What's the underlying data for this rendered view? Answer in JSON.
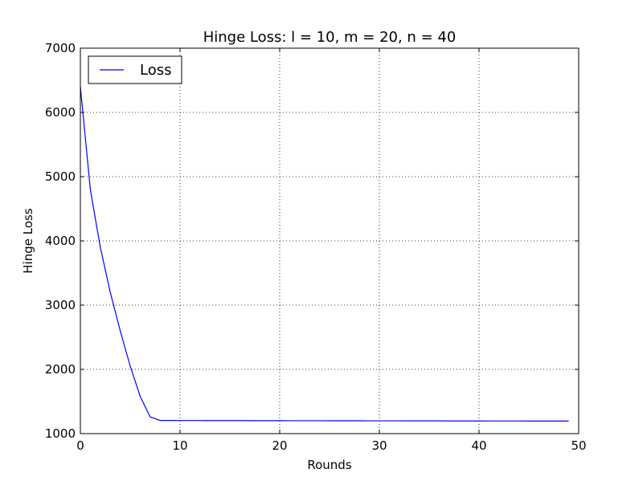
{
  "chart_data": {
    "type": "line",
    "title": "Hinge Loss: l = 10, m = 20, n = 40",
    "xlabel": "Rounds",
    "ylabel": "Hinge Loss",
    "xlim": [
      0,
      50
    ],
    "ylim": [
      1000,
      7000
    ],
    "xticks": [
      0,
      10,
      20,
      30,
      40,
      50
    ],
    "yticks": [
      1000,
      2000,
      3000,
      4000,
      5000,
      6000,
      7000
    ],
    "grid": true,
    "legend_position": "upper-left",
    "series": [
      {
        "name": "Loss",
        "color": "#0000ff",
        "x": [
          0,
          1,
          2,
          3,
          4,
          5,
          6,
          7,
          8,
          9,
          10,
          11,
          12,
          13,
          14,
          15,
          16,
          17,
          18,
          19,
          20,
          21,
          22,
          23,
          24,
          25,
          26,
          27,
          28,
          29,
          30,
          31,
          32,
          33,
          34,
          35,
          36,
          37,
          38,
          39,
          40,
          41,
          42,
          43,
          44,
          45,
          46,
          47,
          48,
          49
        ],
        "values": [
          6400,
          4800,
          3900,
          3200,
          2600,
          2050,
          1580,
          1260,
          1205,
          1205,
          1204,
          1204,
          1204,
          1203,
          1203,
          1203,
          1203,
          1202,
          1202,
          1202,
          1202,
          1201,
          1201,
          1201,
          1201,
          1200,
          1200,
          1200,
          1200,
          1199,
          1199,
          1199,
          1199,
          1198,
          1198,
          1198,
          1198,
          1197,
          1197,
          1197,
          1197,
          1196,
          1196,
          1196,
          1196,
          1195,
          1195,
          1195,
          1195,
          1195
        ]
      }
    ]
  }
}
